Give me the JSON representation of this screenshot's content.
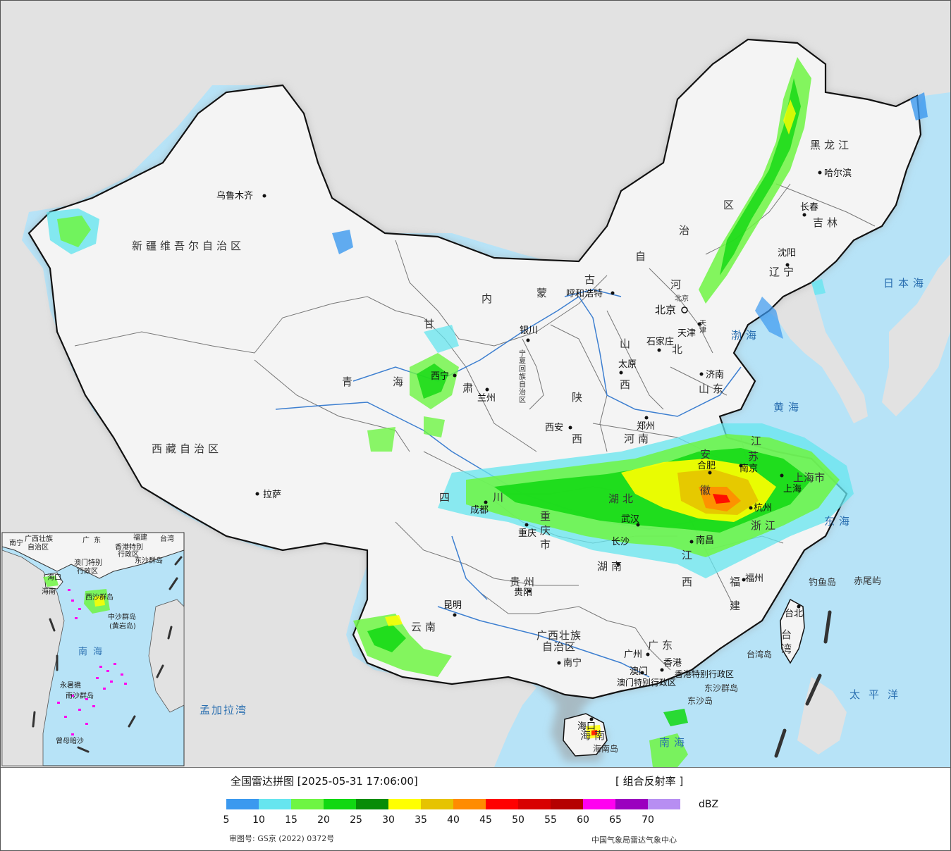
{
  "map": {
    "colors": {
      "ocean": "#b7e3f7",
      "land_china": "#f4f4f4",
      "land_foreign": "#e2e2e2",
      "border": "#111111",
      "river": "#3d7fd0"
    },
    "provinces": [
      {
        "id": "xinjiang",
        "label": "新疆维吾尔自治区"
      },
      {
        "id": "xizang",
        "label": "西藏自治区"
      },
      {
        "id": "qinghai1",
        "label": "青"
      },
      {
        "id": "qinghai2",
        "label": "海"
      },
      {
        "id": "gansu1",
        "label": "甘"
      },
      {
        "id": "gansu2",
        "label": "肃"
      },
      {
        "id": "nmg1",
        "label": "内"
      },
      {
        "id": "nmg2",
        "label": "蒙"
      },
      {
        "id": "nmg3",
        "label": "古"
      },
      {
        "id": "nmg4",
        "label": "自"
      },
      {
        "id": "nmg5",
        "label": "治"
      },
      {
        "id": "nmg6",
        "label": "区"
      },
      {
        "id": "heilongjiang",
        "label": "黑龙江"
      },
      {
        "id": "jilin",
        "label": "吉林"
      },
      {
        "id": "liaoning",
        "label": "辽宁"
      },
      {
        "id": "hebei1",
        "label": "河"
      },
      {
        "id": "hebei2",
        "label": "北"
      },
      {
        "id": "shanxi1",
        "label": "山"
      },
      {
        "id": "shanxi2",
        "label": "西"
      },
      {
        "id": "shandong",
        "label": "山东"
      },
      {
        "id": "henan",
        "label": "河南"
      },
      {
        "id": "shaanxi1",
        "label": "陕"
      },
      {
        "id": "shaanxi2",
        "label": "西"
      },
      {
        "id": "ningxia",
        "label": "宁夏回族自治区"
      },
      {
        "id": "sichuan1",
        "label": "四"
      },
      {
        "id": "sichuan2",
        "label": "川"
      },
      {
        "id": "chongqing",
        "label": "重庆市"
      },
      {
        "id": "hubei",
        "label": "湖北"
      },
      {
        "id": "hunan",
        "label": "湖南"
      },
      {
        "id": "anhui1",
        "label": "安"
      },
      {
        "id": "anhui2",
        "label": "徽"
      },
      {
        "id": "jiangsu1",
        "label": "江"
      },
      {
        "id": "jiangsu2",
        "label": "苏"
      },
      {
        "id": "shanghai",
        "label": "上海市"
      },
      {
        "id": "zhejiang",
        "label": "浙江"
      },
      {
        "id": "jiangxi1",
        "label": "江"
      },
      {
        "id": "jiangxi2",
        "label": "西"
      },
      {
        "id": "fujian1",
        "label": "福"
      },
      {
        "id": "fujian2",
        "label": "建"
      },
      {
        "id": "guizhou",
        "label": "贵州"
      },
      {
        "id": "yunnan",
        "label": "云南"
      },
      {
        "id": "guangxi1",
        "label": "广西壮族"
      },
      {
        "id": "guangxi2",
        "label": "自治区"
      },
      {
        "id": "guangdong",
        "label": "广东"
      },
      {
        "id": "hainan",
        "label": "海南"
      },
      {
        "id": "taiwan",
        "label": "台湾"
      },
      {
        "id": "hk",
        "label": "香港特别行政区"
      },
      {
        "id": "mo",
        "label": "澳门特别行政区"
      },
      {
        "id": "tianjin",
        "label": "天津"
      },
      {
        "id": "beijing",
        "label": "北京"
      }
    ],
    "cities": [
      {
        "id": "urumqi",
        "label": "乌鲁木齐"
      },
      {
        "id": "lhasa",
        "label": "拉萨"
      },
      {
        "id": "xining",
        "label": "西宁"
      },
      {
        "id": "lanzhou",
        "label": "兰州"
      },
      {
        "id": "yinchuan",
        "label": "银川"
      },
      {
        "id": "hohhot",
        "label": "呼和浩特"
      },
      {
        "id": "harbin",
        "label": "哈尔滨"
      },
      {
        "id": "changchun",
        "label": "长春"
      },
      {
        "id": "shenyang",
        "label": "沈阳"
      },
      {
        "id": "beijing",
        "label": "北京"
      },
      {
        "id": "tianjin",
        "label": "天津"
      },
      {
        "id": "shijiazhuang",
        "label": "石家庄"
      },
      {
        "id": "taiyuan",
        "label": "太原"
      },
      {
        "id": "jinan",
        "label": "济南"
      },
      {
        "id": "zhengzhou",
        "label": "郑州"
      },
      {
        "id": "xian",
        "label": "西安"
      },
      {
        "id": "chengdu",
        "label": "成都"
      },
      {
        "id": "chongqing",
        "label": "重庆"
      },
      {
        "id": "wuhan",
        "label": "武汉"
      },
      {
        "id": "changsha",
        "label": "长沙"
      },
      {
        "id": "hefei",
        "label": "合肥"
      },
      {
        "id": "nanjing",
        "label": "南京"
      },
      {
        "id": "shanghai",
        "label": "上海"
      },
      {
        "id": "hangzhou",
        "label": "杭州"
      },
      {
        "id": "nanchang",
        "label": "南昌"
      },
      {
        "id": "fuzhou",
        "label": "福州"
      },
      {
        "id": "taipei",
        "label": "台北"
      },
      {
        "id": "guiyang",
        "label": "贵阳"
      },
      {
        "id": "kunming",
        "label": "昆明"
      },
      {
        "id": "nanning",
        "label": "南宁"
      },
      {
        "id": "guangzhou",
        "label": "广州"
      },
      {
        "id": "hongkong",
        "label": "香港"
      },
      {
        "id": "macau",
        "label": "澳门"
      },
      {
        "id": "haikou",
        "label": "海口"
      }
    ],
    "seas": [
      {
        "id": "bohai",
        "label": "渤海"
      },
      {
        "id": "yellow",
        "label": "黄海"
      },
      {
        "id": "east",
        "label": "东海"
      },
      {
        "id": "south",
        "label": "南海"
      },
      {
        "id": "pacific",
        "label": "太平洋"
      },
      {
        "id": "japan",
        "label": "日本海"
      },
      {
        "id": "bengal",
        "label": "孟加拉湾"
      }
    ],
    "islands": [
      {
        "id": "diaoyu",
        "label": "钓鱼岛"
      },
      {
        "id": "chiwei",
        "label": "赤尾屿"
      },
      {
        "id": "taiwan_island",
        "label": "台湾岛"
      },
      {
        "id": "dongsha",
        "label": "东沙群岛"
      },
      {
        "id": "dongsha_island",
        "label": "东沙岛"
      },
      {
        "id": "hainan_island",
        "label": "海南岛"
      }
    ],
    "inset": {
      "labels": [
        {
          "id": "i_gx",
          "label": "广西壮族"
        },
        {
          "id": "i_gx2",
          "label": "自治区"
        },
        {
          "id": "i_gd",
          "label": "广东"
        },
        {
          "id": "i_fj",
          "label": "福建"
        },
        {
          "id": "i_tw",
          "label": "台湾"
        },
        {
          "id": "i_hk",
          "label": "香港特别"
        },
        {
          "id": "i_hk2",
          "label": "行政区"
        },
        {
          "id": "i_mo",
          "label": "澳门特别"
        },
        {
          "id": "i_mo2",
          "label": "行政区"
        },
        {
          "id": "i_ds",
          "label": "东沙群岛"
        },
        {
          "id": "i_hn",
          "label": "海南"
        },
        {
          "id": "i_xs",
          "label": "西沙群岛"
        },
        {
          "id": "i_zs",
          "label": "中沙群岛"
        },
        {
          "id": "i_hy",
          "label": "(黄岩岛)"
        },
        {
          "id": "i_nh",
          "label": "南海"
        },
        {
          "id": "i_ns",
          "label": "南沙群岛"
        },
        {
          "id": "i_yx",
          "label": "永暑礁"
        },
        {
          "id": "i_zm",
          "label": "曾母暗沙"
        },
        {
          "id": "i_nanning",
          "label": "南宁"
        },
        {
          "id": "i_haikou",
          "label": "海口"
        }
      ]
    }
  },
  "legend": {
    "title": "全国雷达拼图 [2025-05-31 17:06:00]",
    "product": "[ 组合反射率 ]",
    "unit": "dBZ",
    "colors": [
      "#3b99ef",
      "#66e5ef",
      "#6ef543",
      "#11d812",
      "#088c07",
      "#ffff00",
      "#e6c300",
      "#ff8c00",
      "#ff0000",
      "#d80000",
      "#b50000",
      "#ff00f0",
      "#9b00bf",
      "#b78ef2"
    ],
    "ticks": [
      "5",
      "10",
      "15",
      "20",
      "25",
      "30",
      "35",
      "40",
      "45",
      "50",
      "55",
      "60",
      "65",
      "70"
    ],
    "approval": "审图号: GS京 (2022) 0372号",
    "source": "中国气象局雷达气象中心"
  }
}
